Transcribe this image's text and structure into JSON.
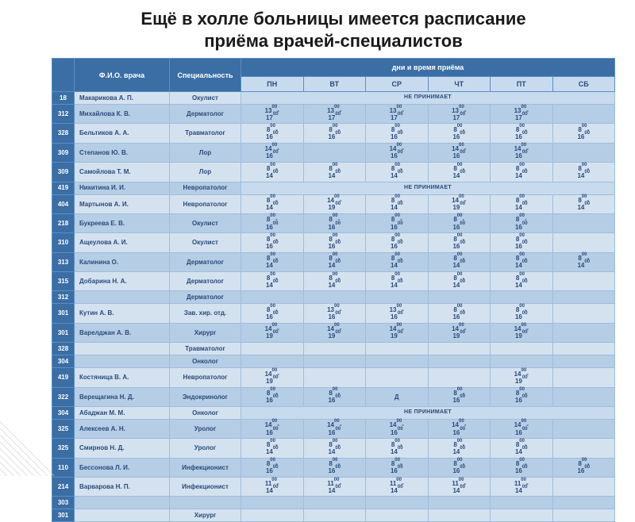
{
  "title_line1": "Ещё в холле больницы имеется расписание",
  "title_line2": "приёма  врачей-специалистов",
  "headers": {
    "room": "",
    "fio": "Ф.И.О. врача",
    "spec": "Специальность",
    "days_group": "дни и время приёма",
    "days": [
      "ПН",
      "ВТ",
      "СР",
      "ЧТ",
      "ПТ",
      "СБ"
    ]
  },
  "no_admit": "НЕ ПРИНИМАЕТ",
  "rows": [
    {
      "room": "18",
      "name": "Макарикова А. П.",
      "spec": "Окулист",
      "times": [
        "NA",
        "NA",
        "NA",
        "NA",
        "NA",
        "NA"
      ]
    },
    {
      "room": "312",
      "name": "Михайлова К. В.",
      "spec": "Дерматолог",
      "times": [
        "13:00-17:00",
        "13:00-17:00",
        "13:00-17:00",
        "13:00-17:00",
        "13:00-17:00",
        ""
      ]
    },
    {
      "room": "328",
      "name": "Бельтиков А. А.",
      "spec": "Травматолог",
      "times": [
        "8:00-16:00",
        "8:00-16:00",
        "8:00-16:00",
        "8:00-16:00",
        "8:00-16:00",
        "8:00-16:00"
      ]
    },
    {
      "room": "309",
      "name": "Степанов Ю. В.",
      "spec": "Лор",
      "times": [
        "14:00-16:00",
        "",
        "14:00-16:00",
        "14:00-16:00",
        "14:00-16:00",
        ""
      ]
    },
    {
      "room": "309",
      "name": "Самойлова Т. М.",
      "spec": "Лор",
      "times": [
        "8:00-14:00",
        "8:00-14:00",
        "8:00-14:00",
        "8:00-14:00",
        "8:00-14:00",
        "8:00-14:00"
      ]
    },
    {
      "room": "419",
      "name": "Никитина И. И.",
      "spec": "Невропатолог",
      "times": [
        "NA",
        "NA",
        "NA",
        "NA",
        "NA",
        "NA"
      ]
    },
    {
      "room": "404",
      "name": "Мартынов А. И.",
      "spec": "Невропатолог",
      "times": [
        "8:00-14:00",
        "14:00-19:00",
        "8:00-14:00",
        "14:00-19:00",
        "8:00-14:00",
        "8:00-14:00"
      ]
    },
    {
      "room": "218",
      "name": "Букреева Е. В.",
      "spec": "Окулист",
      "times": [
        "8:00-16:00",
        "8:00-16:00",
        "8:00-16:00",
        "8:00-16:00",
        "8:00-16:00",
        ""
      ]
    },
    {
      "room": "310",
      "name": "Ащеулова А. И.",
      "spec": "Окулист",
      "times": [
        "8:00-16:00",
        "8:00-16:00",
        "8:00-16:00",
        "8:00-16:00",
        "8:00-16:00",
        ""
      ]
    },
    {
      "room": "313",
      "name": "Калинина О.",
      "spec": "Дерматолог",
      "times": [
        "8:00-14:00",
        "8:00-14:00",
        "8:00-14:00",
        "8:00-14:00",
        "8:00-14:00",
        "8:00-14:00"
      ]
    },
    {
      "room": "315",
      "name": "Добарина Н. А.",
      "spec": "Дерматолог",
      "times": [
        "8:00-14:00",
        "8:00-14:00",
        "8:00-14:00",
        "8:00-14:00",
        "8:00-14:00",
        ""
      ]
    },
    {
      "room": "312",
      "name": "",
      "spec": "Дерматолог",
      "times": [
        "",
        "",
        "",
        "",
        "",
        ""
      ]
    },
    {
      "room": "301",
      "name": "Кутин А. В.",
      "spec": "Зав. хир. отд.",
      "times": [
        "8:00-16:00",
        "13:00-16:00",
        "13:00-16:00",
        "8:00-16:00",
        "8:00-16:00",
        ""
      ]
    },
    {
      "room": "301",
      "name": "Варелджан А. В.",
      "spec": "Хирург",
      "times": [
        "14:00-19:00",
        "14:00-19:00",
        "14:00-19:00",
        "14:00-19:00",
        "14:00-19:00",
        ""
      ]
    },
    {
      "room": "328",
      "name": "",
      "spec": "Травматолог",
      "times": [
        "",
        "",
        "",
        "",
        "",
        ""
      ]
    },
    {
      "room": "304",
      "name": "",
      "spec": "Онколог",
      "times": [
        "",
        "",
        "",
        "",
        "",
        ""
      ]
    },
    {
      "room": "419",
      "name": "Костяница В. А.",
      "spec": "Невропатолог",
      "times": [
        "14:00-19:00",
        "",
        "",
        "",
        "14:00-19:00",
        ""
      ]
    },
    {
      "room": "322",
      "name": "Верещагина Н. Д.",
      "spec": "Эндокринолог",
      "times": [
        "8:00-16:00",
        "8:00-16:00",
        "Д",
        "8:00-16:00",
        "8:00-16:00",
        ""
      ]
    },
    {
      "room": "304",
      "name": "Абаджан М. М.",
      "spec": "Онколог",
      "times": [
        "NA",
        "NA",
        "NA",
        "NA",
        "NA",
        "NA"
      ]
    },
    {
      "room": "325",
      "name": "Алексеев А. Н.",
      "spec": "Уролог",
      "times": [
        "14:00-16:00",
        "14:00-16:00",
        "14:00-16:00",
        "14:00-16:00",
        "14:00-16:00",
        ""
      ]
    },
    {
      "room": "325",
      "name": "Смирнов Н. Д.",
      "spec": "Уролог",
      "times": [
        "8:00-14:00",
        "8:00-14:00",
        "8:00-14:00",
        "8:00-14:00",
        "8:00-14:00",
        ""
      ]
    },
    {
      "room": "110",
      "name": "Бессонова Л. И.",
      "spec": "Инфекционист",
      "times": [
        "8:00-16:00",
        "8:00-16:00",
        "8:00-16:00",
        "8:00-16:00",
        "8:00-16:00",
        "8:00-16:00"
      ]
    },
    {
      "room": "214",
      "name": "Варварова Н. П.",
      "spec": "Инфекционист",
      "times": [
        "11:00-14:00",
        "11:00-14:00",
        "11:00-14:00",
        "11:00-14:00",
        "11:00-14:00",
        ""
      ]
    },
    {
      "room": "303",
      "name": "",
      "spec": "",
      "times": [
        "",
        "",
        "",
        "",
        "",
        ""
      ]
    },
    {
      "room": "301",
      "name": "",
      "spec": "Хирург",
      "times": [
        "",
        "",
        "",
        "",
        "",
        ""
      ]
    }
  ],
  "colors": {
    "header_bg": "#3a6ea5",
    "row_light": "#d4e2f0",
    "row_dark": "#b5cde5",
    "text": "#2a4a7a"
  }
}
